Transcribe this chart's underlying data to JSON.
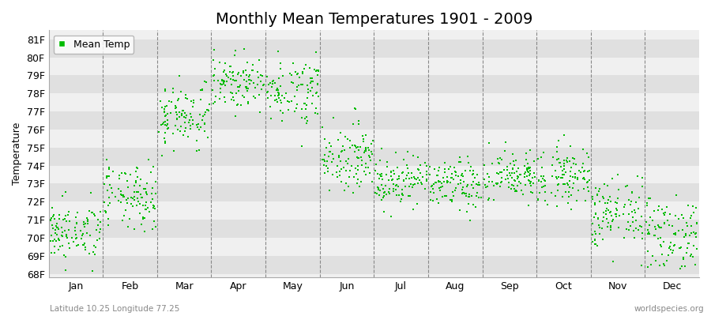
{
  "title": "Monthly Mean Temperatures 1901 - 2009",
  "ylabel": "Temperature",
  "xlabel_labels": [
    "Jan",
    "Feb",
    "Mar",
    "Apr",
    "May",
    "Jun",
    "Jul",
    "Aug",
    "Sep",
    "Oct",
    "Nov",
    "Dec"
  ],
  "ytick_labels": [
    "68F",
    "69F",
    "70F",
    "71F",
    "72F",
    "73F",
    "74F",
    "75F",
    "76F",
    "77F",
    "78F",
    "79F",
    "80F",
    "81F"
  ],
  "ytick_values": [
    68,
    69,
    70,
    71,
    72,
    73,
    74,
    75,
    76,
    77,
    78,
    79,
    80,
    81
  ],
  "ylim": [
    67.8,
    81.5
  ],
  "xlim": [
    0,
    12
  ],
  "marker_color": "#00bb00",
  "marker_size": 4,
  "background_color": "#f0f0f0",
  "plot_bg_light": "#f0f0f0",
  "plot_bg_dark": "#e0e0e0",
  "title_fontsize": 14,
  "axis_fontsize": 9,
  "tick_fontsize": 9,
  "legend_label": "Mean Temp",
  "footer_left": "Latitude 10.25 Longitude 77.25",
  "footer_right": "worldspecies.org",
  "monthly_means": [
    70.3,
    72.2,
    76.8,
    78.6,
    78.2,
    74.5,
    73.2,
    72.9,
    73.4,
    73.5,
    71.3,
    70.2
  ],
  "monthly_std": [
    0.8,
    0.9,
    0.9,
    0.7,
    0.9,
    0.9,
    0.7,
    0.7,
    0.7,
    0.8,
    1.0,
    1.1
  ]
}
